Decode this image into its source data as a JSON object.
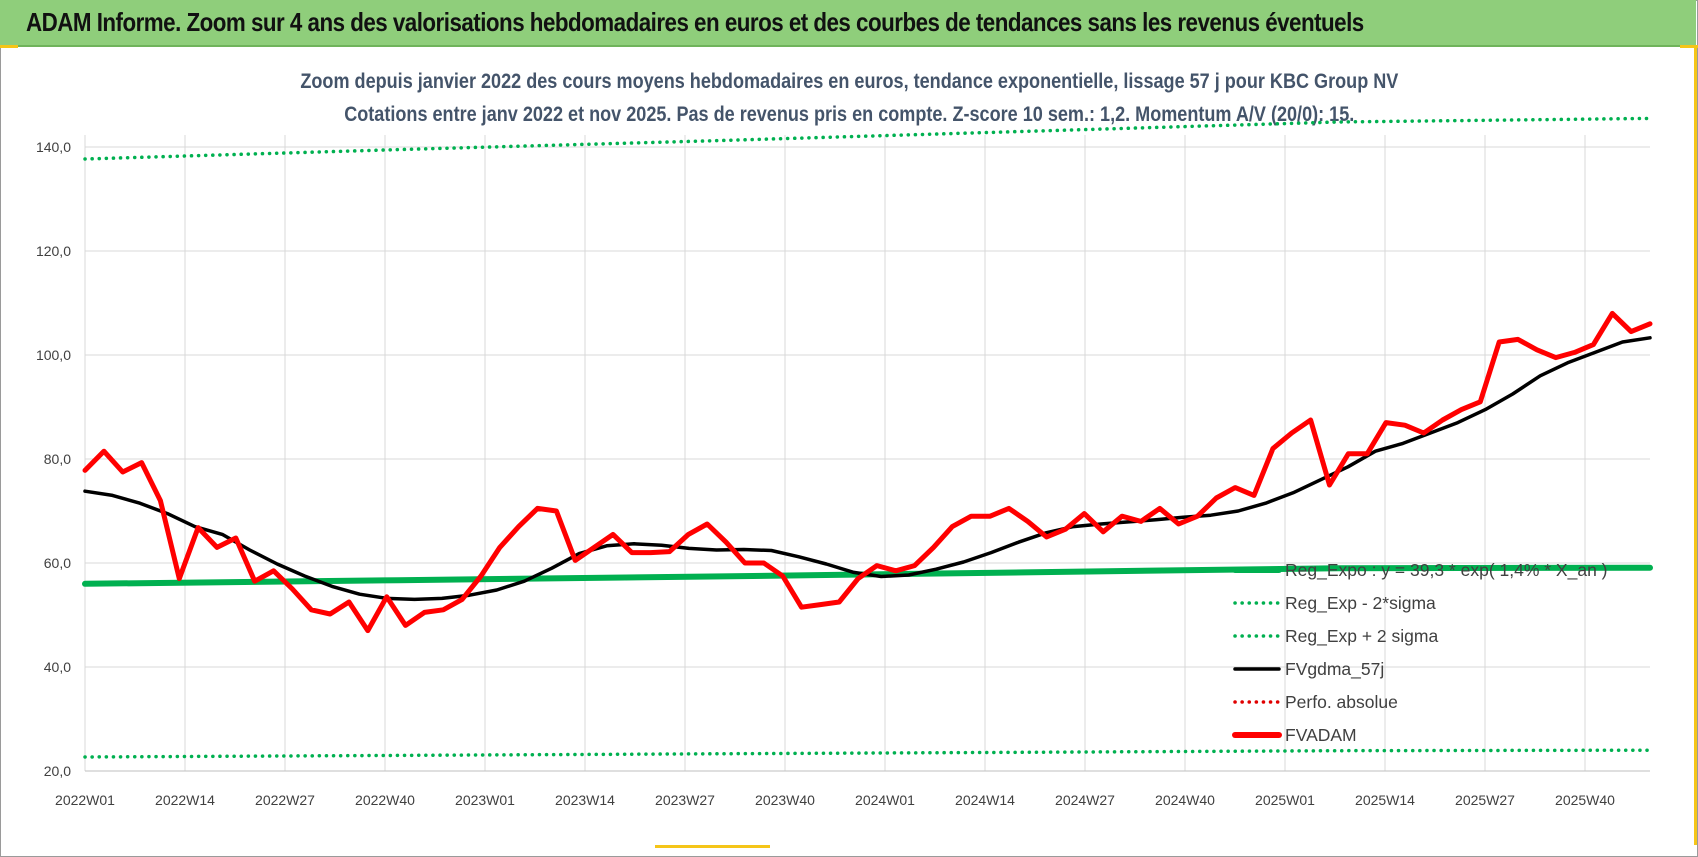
{
  "banner": {
    "title": "ADAM Informe. Zoom sur 4 ans des valorisations hebdomadaires en euros et des courbes de tendances sans les revenus éventuels",
    "background": "#8fce7b"
  },
  "chart_data": {
    "type": "line",
    "title": "Zoom depuis janvier 2022 des cours moyens hebdomadaires en euros, tendance exponentielle, lissage 57 j pour KBC Group NV",
    "subtitle": "Cotations entre janv 2022 et nov 2025. Pas de revenus pris en compte. Z-score 10 sem.: 1,2. Momentum A/V (20/0): 15.",
    "x_tick_labels": [
      "2022W01",
      "2022W14",
      "2022W27",
      "2022W40",
      "2023W01",
      "2023W14",
      "2023W27",
      "2023W40",
      "2024W01",
      "2024W14",
      "2024W27",
      "2024W40",
      "2025W01",
      "2025W14",
      "2025W27",
      "2025W40"
    ],
    "y_tick_labels": [
      "20,0",
      "40,0",
      "60,0",
      "80,0",
      "100,0",
      "120,0",
      "140,0"
    ],
    "ylim": [
      20,
      150
    ],
    "grid": true,
    "legend_position": "right",
    "series": [
      {
        "name": "Reg_Expo : y = 39,3 * exp( 1,4% * X_an )",
        "color": "#00b050",
        "style": "solid-thick",
        "values": [
          56.0,
          56.7,
          57.4,
          58.2,
          59.0,
          59.1
        ]
      },
      {
        "name": "Reg_Exp - 2*sigma",
        "color": "#00b050",
        "style": "dotted",
        "values": [
          22.7,
          23.0,
          23.3,
          23.6,
          23.9,
          24.0
        ]
      },
      {
        "name": "Reg_Exp + 2 sigma",
        "color": "#00b050",
        "style": "dotted",
        "values": [
          137.7,
          139.5,
          141.2,
          143.0,
          144.8,
          145.5
        ]
      },
      {
        "name": "FVgdma_57j",
        "color": "#000000",
        "style": "solid",
        "values": [
          73.8,
          73.0,
          71.5,
          69.5,
          67.0,
          65.5,
          62.5,
          59.8,
          57.5,
          55.5,
          54.0,
          53.2,
          53.0,
          53.2,
          53.8,
          54.8,
          56.5,
          59.0,
          61.8,
          63.3,
          63.7,
          63.4,
          62.8,
          62.5,
          62.6,
          62.4,
          61.2,
          59.8,
          58.2,
          57.4,
          57.7,
          58.8,
          60.2,
          62.0,
          64.0,
          65.8,
          67.0,
          67.5,
          67.9,
          68.3,
          68.8,
          69.2,
          70.0,
          71.5,
          73.5,
          76.0,
          78.5,
          81.5,
          83.0,
          85.0,
          87.0,
          89.5,
          92.5,
          96.0,
          98.5,
          100.5,
          102.5,
          103.3
        ]
      },
      {
        "name": "Perfo. absolue",
        "color": "#e00000",
        "style": "dotted",
        "values": []
      },
      {
        "name": "FVADAM",
        "color": "#ff0000",
        "style": "solid-thick",
        "values": [
          77.8,
          81.5,
          77.5,
          79.3,
          72.0,
          57.0,
          66.8,
          63.0,
          64.8,
          56.5,
          58.5,
          55.0,
          51.0,
          50.2,
          52.5,
          47.0,
          53.5,
          48.0,
          50.5,
          51.0,
          53.0,
          57.5,
          63.0,
          67.0,
          70.5,
          70.0,
          60.5,
          63.0,
          65.5,
          62.0,
          62.0,
          62.2,
          65.5,
          67.5,
          64.0,
          60.0,
          60.0,
          57.5,
          51.5,
          52.0,
          52.5,
          57.0,
          59.5,
          58.5,
          59.5,
          63.0,
          67.0,
          69.0,
          69.0,
          70.5,
          68.0,
          65.0,
          66.5,
          69.5,
          66.0,
          69.0,
          68.0,
          70.5,
          67.5,
          69.0,
          72.5,
          74.5,
          73.0,
          82.0,
          85.0,
          87.5,
          75.0,
          81.0,
          81.0,
          87.0,
          86.5,
          85.0,
          87.5,
          89.5,
          91.0,
          102.5,
          103.0,
          101.0,
          99.5,
          100.5,
          102.0,
          108.0,
          104.5,
          106.0
        ]
      }
    ]
  }
}
